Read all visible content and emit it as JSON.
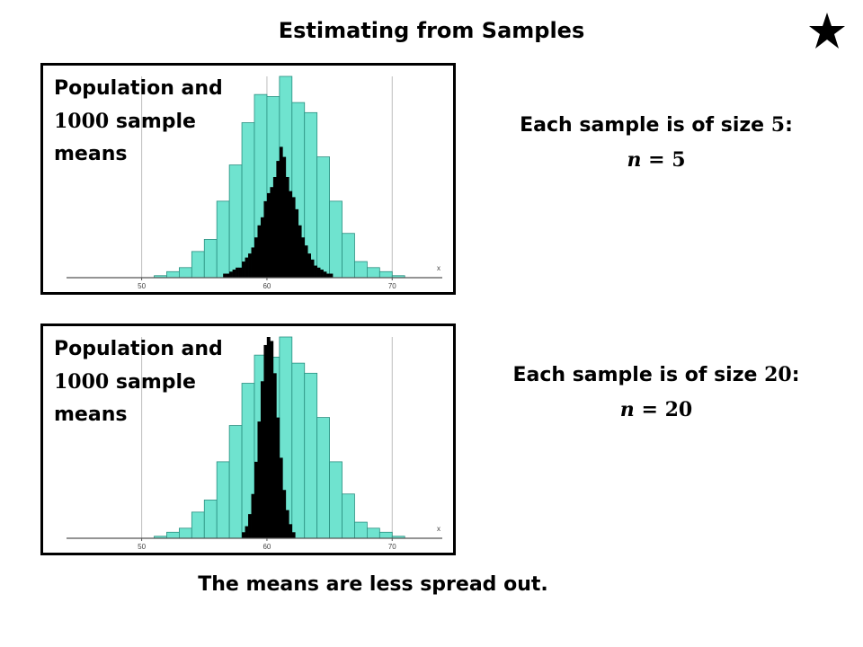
{
  "title": "Estimating from Samples",
  "star_icon": "star-icon",
  "panels": [
    {
      "label_prefix": "Population and",
      "label_num": "1000",
      "label_mid": "sample",
      "label_end": "means",
      "size_prefix": "Each sample is of size",
      "size_num": "5",
      "size_colon": ":",
      "n_var": "n",
      "n_eq": "=",
      "n_val": "5"
    },
    {
      "label_prefix": "Population and",
      "label_num": "1000",
      "label_mid": "sample",
      "label_end": "means",
      "size_prefix": "Each sample is of size",
      "size_num": "20",
      "size_colon": ":",
      "n_var": "n",
      "n_eq": "=",
      "n_val": "20"
    }
  ],
  "footer": "The means are less spread out.",
  "colors": {
    "population": "#6fe3cf",
    "sample": "#000000",
    "gridline": "#bdbdbd"
  },
  "chart_data": [
    {
      "type": "bar",
      "xlim": [
        44,
        74
      ],
      "ylim": [
        0,
        100
      ],
      "xticks": [
        "50",
        "60",
        "70"
      ],
      "xlabel": "x",
      "grid": true,
      "series": [
        {
          "bin_width": 1,
          "bins_start": 51,
          "values": [
            1,
            3,
            5,
            13,
            19,
            38,
            56,
            77,
            91,
            90,
            100,
            87,
            82,
            60,
            38,
            22,
            8,
            5,
            3,
            1
          ]
        },
        {
          "bin_width": 0.25,
          "bins_start": 56.5,
          "values": [
            2,
            2,
            3,
            4,
            5,
            5,
            8,
            10,
            12,
            15,
            20,
            26,
            30,
            38,
            42,
            45,
            50,
            58,
            65,
            60,
            50,
            43,
            40,
            34,
            26,
            20,
            16,
            12,
            9,
            6,
            5,
            4,
            3,
            2,
            2
          ]
        }
      ]
    },
    {
      "type": "bar",
      "xlim": [
        44,
        74
      ],
      "ylim": [
        0,
        100
      ],
      "xticks": [
        "50",
        "60",
        "70"
      ],
      "xlabel": "x",
      "grid": true,
      "series": [
        {
          "bin_width": 1,
          "bins_start": 51,
          "values": [
            1,
            3,
            5,
            13,
            19,
            38,
            56,
            77,
            91,
            90,
            100,
            87,
            82,
            60,
            38,
            22,
            8,
            5,
            3,
            1
          ]
        },
        {
          "bin_width": 0.25,
          "bins_start": 58,
          "values": [
            3,
            6,
            12,
            22,
            38,
            58,
            78,
            96,
            100,
            98,
            82,
            60,
            40,
            24,
            14,
            7,
            3
          ]
        }
      ]
    }
  ]
}
